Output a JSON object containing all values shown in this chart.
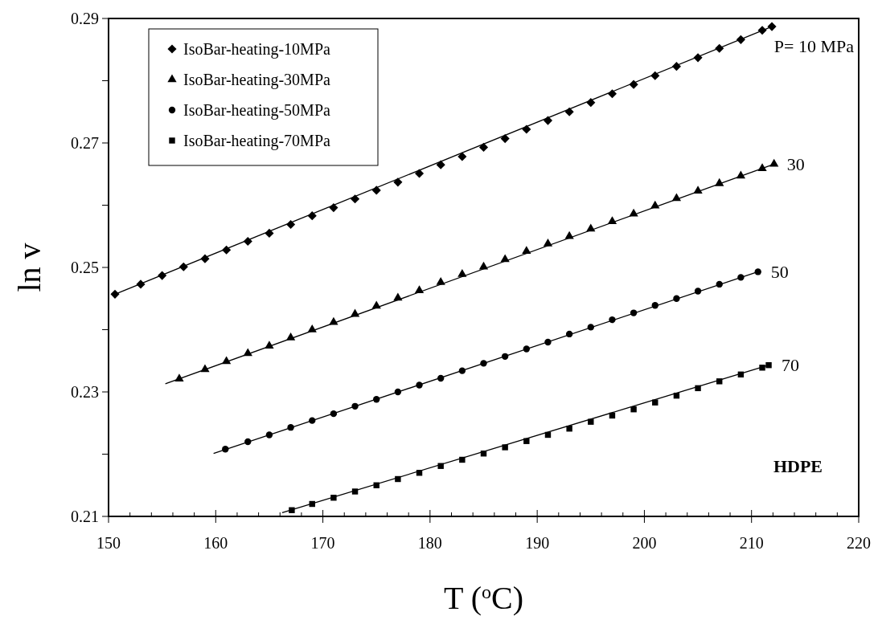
{
  "chart_data": {
    "type": "scatter",
    "xlabel": "T ($^{o}$C)",
    "ylabel": "ln v",
    "xlim": [
      150,
      220
    ],
    "ylim": [
      0.21,
      0.29
    ],
    "xticks": [
      150,
      {
        "value": 152,
        "label": null
      },
      {
        "value": 154,
        "label": null
      },
      {
        "value": 156,
        "label": null
      },
      {
        "value": 158,
        "label": null
      },
      160,
      {
        "value": 162,
        "label": null
      },
      {
        "value": 164,
        "label": null
      },
      {
        "value": 166,
        "label": null
      },
      {
        "value": 168,
        "label": null
      },
      170,
      {
        "value": 172,
        "label": null
      },
      {
        "value": 174,
        "label": null
      },
      {
        "value": 176,
        "label": null
      },
      {
        "value": 178,
        "label": null
      },
      180,
      {
        "value": 182,
        "label": null
      },
      {
        "value": 184,
        "label": null
      },
      {
        "value": 186,
        "label": null
      },
      {
        "value": 188,
        "label": null
      },
      190,
      {
        "value": 192,
        "label": null
      },
      {
        "value": 194,
        "label": null
      },
      {
        "value": 196,
        "label": null
      },
      {
        "value": 198,
        "label": null
      },
      200,
      {
        "value": 202,
        "label": null
      },
      {
        "value": 204,
        "label": null
      },
      {
        "value": 206,
        "label": null
      },
      {
        "value": 208,
        "label": null
      },
      210,
      {
        "value": 212,
        "label": null
      },
      {
        "value": 214,
        "label": null
      },
      {
        "value": 216,
        "label": null
      },
      {
        "value": 218,
        "label": null
      },
      220
    ],
    "yticks": [
      0.21,
      {
        "value": 0.22,
        "label": null
      },
      0.23,
      {
        "value": 0.24,
        "label": null
      },
      0.25,
      {
        "value": 0.26,
        "label": null
      },
      0.27,
      {
        "value": 0.28,
        "label": null
      },
      0.29
    ],
    "grid": false,
    "legend": "top left",
    "series": [
      {
        "name": "IsoBar-heating-10MPa",
        "color": "#000000",
        "marker": "diamond",
        "x": [
          150.6,
          153,
          155,
          157,
          159,
          161,
          163,
          165,
          167,
          169,
          171,
          173,
          175,
          177,
          179,
          181,
          183,
          185,
          187,
          189,
          191,
          193,
          195,
          197,
          199,
          201,
          203,
          205,
          207,
          209,
          211,
          211.9
        ],
        "values": [
          0.2457,
          0.2473,
          0.2487,
          0.2501,
          0.2514,
          0.2528,
          0.2542,
          0.2555,
          0.2569,
          0.2583,
          0.2596,
          0.261,
          0.2624,
          0.2637,
          0.2651,
          0.2665,
          0.2678,
          0.2693,
          0.2707,
          0.2722,
          0.2736,
          0.275,
          0.2765,
          0.2779,
          0.2794,
          0.2808,
          0.2823,
          0.2837,
          0.2852,
          0.2866,
          0.2881,
          0.2887
        ]
      },
      {
        "name": "IsoBar-heating-30MPa",
        "color": "#000000",
        "marker": "triangle",
        "x": [
          156.6,
          159,
          161,
          163,
          165,
          167,
          169,
          171,
          173,
          175,
          177,
          179,
          181,
          183,
          185,
          187,
          189,
          191,
          193,
          195,
          197,
          199,
          201,
          203,
          205,
          207,
          209,
          211,
          212.1
        ],
        "values": [
          0.2321,
          0.2336,
          0.2349,
          0.2362,
          0.2374,
          0.2387,
          0.24,
          0.2412,
          0.2425,
          0.2438,
          0.2451,
          0.2463,
          0.2476,
          0.2489,
          0.2501,
          0.2513,
          0.2526,
          0.2538,
          0.255,
          0.2562,
          0.2574,
          0.2586,
          0.2599,
          0.2611,
          0.2623,
          0.2635,
          0.2647,
          0.2659,
          0.2666
        ]
      },
      {
        "name": "IsoBar-heating-50MPa",
        "color": "#000000",
        "marker": "circle",
        "x": [
          160.9,
          163,
          165,
          167,
          169,
          171,
          173,
          175,
          177,
          179,
          181,
          183,
          185,
          187,
          189,
          191,
          193,
          195,
          197,
          199,
          201,
          203,
          205,
          207,
          209,
          210.6
        ],
        "values": [
          0.2208,
          0.222,
          0.2231,
          0.2243,
          0.2254,
          0.2265,
          0.2277,
          0.2288,
          0.23,
          0.2311,
          0.2322,
          0.2334,
          0.2346,
          0.2357,
          0.2369,
          0.238,
          0.2393,
          0.2404,
          0.2416,
          0.2427,
          0.2439,
          0.245,
          0.2462,
          0.2473,
          0.2484,
          0.2493
        ]
      },
      {
        "name": "IsoBar-heating-70MPa",
        "color": "#000000",
        "marker": "square",
        "x": [
          167.1,
          169,
          171,
          173,
          175,
          177,
          179,
          181,
          183,
          185,
          187,
          189,
          191,
          193,
          195,
          197,
          199,
          201,
          203,
          205,
          207,
          209,
          211,
          211.6
        ],
        "values": [
          0.211,
          0.212,
          0.213,
          0.214,
          0.215,
          0.216,
          0.217,
          0.2181,
          0.2191,
          0.2201,
          0.2211,
          0.2221,
          0.2231,
          0.2241,
          0.2252,
          0.2262,
          0.2272,
          0.2283,
          0.2294,
          0.2306,
          0.2317,
          0.2328,
          0.2339,
          0.2343
        ]
      },
      {
        "type": "line",
        "color": "#000000",
        "marker": "none",
        "x": [
          150.6,
          211.9
        ],
        "values": [
          0.2457,
          0.2887
        ]
      },
      {
        "type": "line",
        "color": "#000000",
        "marker": "none",
        "x": [
          155.3,
          212.1
        ],
        "values": [
          0.2313,
          0.2666
        ]
      },
      {
        "type": "line",
        "color": "#000000",
        "marker": "none",
        "x": [
          159.8,
          210.6
        ],
        "values": [
          0.2201,
          0.2493
        ]
      },
      {
        "type": "line",
        "color": "#000000",
        "marker": "none",
        "x": [
          166.2,
          211.6
        ],
        "values": [
          0.2106,
          0.2343
        ]
      }
    ],
    "annotations": [
      {
        "text": "P= 10 MPa",
        "x": 211.9,
        "y": 0.2887
      },
      {
        "text": "30",
        "x": 212.1,
        "y": 0.2666
      },
      {
        "text": "50",
        "x": 210.6,
        "y": 0.2493
      },
      {
        "text": "70",
        "x": 211.6,
        "y": 0.2343
      },
      "HDPE"
    ]
  }
}
